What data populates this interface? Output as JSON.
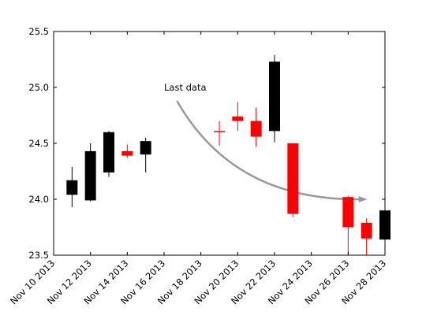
{
  "chart_data": {
    "type": "candlestick",
    "title": "",
    "xlabel": "",
    "ylabel": "",
    "ylim": [
      23.5,
      25.5
    ],
    "xlim": [
      "2013-11-10",
      "2013-11-28"
    ],
    "y_ticks": [
      "23.5",
      "24.0",
      "24.5",
      "25.0",
      "25.5"
    ],
    "x_ticks": [
      "Nov 10 2013",
      "Nov 12 2013",
      "Nov 14 2013",
      "Nov 16 2013",
      "Nov 18 2013",
      "Nov 20 2013",
      "Nov 22 2013",
      "Nov 24 2013",
      "Nov 26 2013",
      "Nov 28 2013"
    ],
    "grid": false,
    "colors": {
      "up": "#000000",
      "down": "#ff0000",
      "annotation_arrow": "#999999"
    },
    "candles": [
      {
        "date": "2013-11-11",
        "open": 24.04,
        "high": 24.29,
        "low": 23.93,
        "close": 24.17
      },
      {
        "date": "2013-11-12",
        "open": 23.99,
        "high": 24.5,
        "low": 23.98,
        "close": 24.43
      },
      {
        "date": "2013-11-13",
        "open": 24.24,
        "high": 24.61,
        "low": 24.2,
        "close": 24.6
      },
      {
        "date": "2013-11-14",
        "open": 24.43,
        "high": 24.49,
        "low": 24.37,
        "close": 24.39
      },
      {
        "date": "2013-11-15",
        "open": 24.4,
        "high": 24.55,
        "low": 24.24,
        "close": 24.52
      },
      {
        "date": "2013-11-19",
        "open": 24.61,
        "high": 24.7,
        "low": 24.48,
        "close": 24.6
      },
      {
        "date": "2013-11-20",
        "open": 24.74,
        "high": 24.87,
        "low": 24.61,
        "close": 24.7
      },
      {
        "date": "2013-11-21",
        "open": 24.7,
        "high": 24.82,
        "low": 24.47,
        "close": 24.56
      },
      {
        "date": "2013-11-22",
        "open": 24.61,
        "high": 25.29,
        "low": 24.51,
        "close": 25.23
      },
      {
        "date": "2013-11-23",
        "open": 24.5,
        "high": 24.5,
        "low": 23.84,
        "close": 23.87
      },
      {
        "date": "2013-11-26",
        "open": 24.02,
        "high": 24.03,
        "low": 23.5,
        "close": 23.75
      },
      {
        "date": "2013-11-27",
        "open": 23.79,
        "high": 23.83,
        "low": 23.5,
        "close": 23.65
      },
      {
        "date": "2013-11-28",
        "open": 23.64,
        "high": 23.91,
        "low": 23.5,
        "close": 23.9
      }
    ],
    "annotation": {
      "text": "Last data",
      "text_at": {
        "date": "2013-11-16",
        "y": 25.0
      },
      "arrow_from": {
        "date": "2013-11-17",
        "y": 24.95
      },
      "arrow_to": {
        "date": "2013-11-27",
        "y": 24.0
      }
    }
  }
}
